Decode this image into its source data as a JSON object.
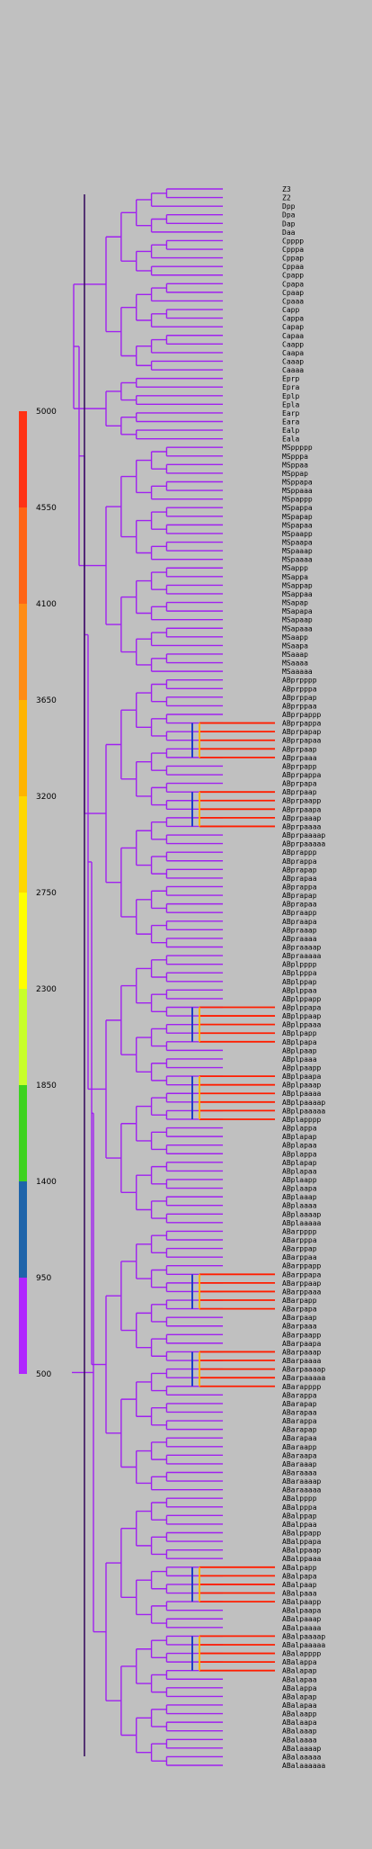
{
  "colors": {
    "background": "#c0c0c0",
    "scale_bands": [
      "#b026ff",
      "#1e64aa",
      "#3dd21e",
      "#c8ff2a",
      "#ffff00",
      "#ffd700",
      "#ffb400",
      "#ff8c14",
      "#ff6414",
      "#ff3214"
    ],
    "branch_default": "#a020f0",
    "trunk": "#3a1060"
  },
  "scale": {
    "labels": [
      "500",
      "950",
      "1400",
      "1850",
      "2300",
      "2750",
      "3200",
      "3650",
      "4100",
      "4550",
      "5000"
    ]
  },
  "leaves": [
    "Z3",
    "Z2",
    "Dpp",
    "Dpa",
    "Dap",
    "Daa",
    "Cpppp",
    "Cpppa",
    "Cppap",
    "Cppaa",
    "Cpapp",
    "Cpapa",
    "Cpaap",
    "Cpaaa",
    "Capp",
    "Cappa",
    "Capap",
    "Capaa",
    "Caapp",
    "Caapa",
    "Caaap",
    "Caaaa",
    "Eprp",
    "Epra",
    "Eplp",
    "Epla",
    "Earp",
    "Eara",
    "Ealp",
    "Eala",
    "MSppppp",
    "MSpppa",
    "MSppaa",
    "MSppap",
    "MSppapa",
    "MSppaaa",
    "MSpappp",
    "MSpappa",
    "MSpapap",
    "MSpapaa",
    "MSpaapp",
    "MSpaapa",
    "MSpaaap",
    "MSpaaaa",
    "MSappp",
    "MSappa",
    "MSappap",
    "MSappaa",
    "MSapap",
    "MSapapa",
    "MSapaap",
    "MSapaaa",
    "MSaapp",
    "MSaapa",
    "MSaaap",
    "MSaaaa",
    "MSaaaaa",
    "ABprpppp",
    "ABprpppa",
    "ABprppap",
    "ABprppaa",
    "ABprpappp",
    "ABprpappa",
    "ABprpapap",
    "ABprpapaa",
    "ABprpaap",
    "ABprpaaa",
    "ABprpapp",
    "ABprpappa",
    "ABprpapa",
    "ABprpaap",
    "ABprpaapp",
    "ABprpaapa",
    "ABprpaaap",
    "ABprpaaaa",
    "ABprpaaaap",
    "ABprpaaaaa",
    "ABprappp",
    "ABprappa",
    "ABprapap",
    "ABprapaa",
    "ABprappa",
    "ABprapap",
    "ABprapaa",
    "ABpraapp",
    "ABpraapa",
    "ABpraaap",
    "ABpraaaa",
    "ABpraaaap",
    "ABpraaaaa",
    "ABplpppp",
    "ABplpppa",
    "ABplppap",
    "ABplppaa",
    "ABplppapp",
    "ABplppapa",
    "ABplppaap",
    "ABplppaaa",
    "ABplpapp",
    "ABplpapa",
    "ABplpaap",
    "ABplpaaa",
    "ABplpaapp",
    "ABplpaapa",
    "ABplpaaap",
    "ABplpaaaa",
    "ABplpaaaap",
    "ABplpaaaaa",
    "ABplapppp",
    "ABplappa",
    "ABplapap",
    "ABplapaa",
    "ABplappa",
    "ABplapap",
    "ABplapaa",
    "ABplaapp",
    "ABplaapa",
    "ABplaaap",
    "ABplaaaa",
    "ABplaaaap",
    "ABplaaaaa",
    "ABarpppp",
    "ABarpppa",
    "ABarppap",
    "ABarppaa",
    "ABarppapp",
    "ABarppapa",
    "ABarppaap",
    "ABarppaaa",
    "ABarpapp",
    "ABarpapa",
    "ABarpaap",
    "ABarpaaa",
    "ABarpaapp",
    "ABarpaapa",
    "ABarpaaap",
    "ABarpaaaa",
    "ABarpaaaap",
    "ABarpaaaaa",
    "ABarapppp",
    "ABarappa",
    "ABarapap",
    "ABarapaa",
    "ABarappa",
    "ABarapap",
    "ABarapaa",
    "ABaraapp",
    "ABaraapa",
    "ABaraaap",
    "ABaraaaa",
    "ABaraaaap",
    "ABaraaaaa",
    "ABalpppp",
    "ABalpppa",
    "ABalppap",
    "ABalppaa",
    "ABalppapp",
    "ABalppapa",
    "ABalppaap",
    "ABalppaaa",
    "ABalpapp",
    "ABalpapa",
    "ABalpaap",
    "ABalpaaa",
    "ABalpaapp",
    "ABalpaapa",
    "ABalpaaap",
    "ABalpaaaa",
    "ABalpaaaap",
    "ABalpaaaaa",
    "ABalapppp",
    "ABalappa",
    "ABalapap",
    "ABalapaa",
    "ABalappa",
    "ABalapap",
    "ABalapaa",
    "ABalaapp",
    "ABalaapa",
    "ABalaaap",
    "ABalaaaa",
    "ABalaaaap",
    "ABalaaaaa",
    "ABalaaaaaa"
  ]
}
